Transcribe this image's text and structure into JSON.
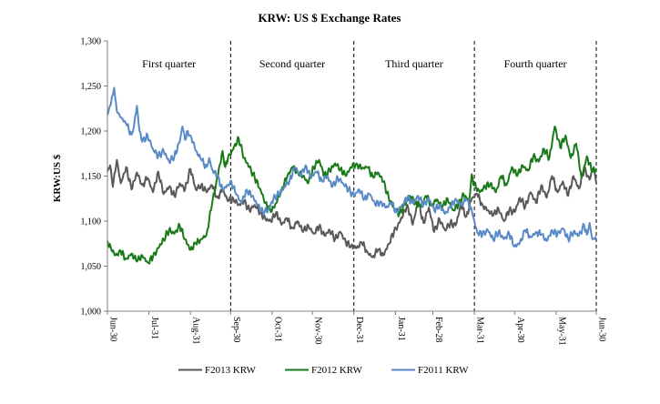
{
  "chart_data": {
    "type": "line",
    "title": "KRW: US $ Exchange Rates",
    "xlabel": "",
    "ylabel": "KRW:US $",
    "ylim": [
      1000,
      1300
    ],
    "y_ticks": [
      1000,
      1050,
      1100,
      1150,
      1200,
      1250,
      1300
    ],
    "y_tick_labels": [
      "1,000",
      "1,050",
      "1,100",
      "1,150",
      "1,200",
      "1,250",
      "1,300"
    ],
    "x_range_days": [
      0,
      365
    ],
    "x_ticks": [
      {
        "label": "Jun-30",
        "day": 0
      },
      {
        "label": "Jul-31",
        "day": 31
      },
      {
        "label": "Aug-31",
        "day": 62
      },
      {
        "label": "Sep-30",
        "day": 92
      },
      {
        "label": "Oct-31",
        "day": 123
      },
      {
        "label": "Nov-30",
        "day": 153
      },
      {
        "label": "Dec-31",
        "day": 184
      },
      {
        "label": "Jan-31",
        "day": 215
      },
      {
        "label": "Feb-28",
        "day": 243
      },
      {
        "label": "Mar-31",
        "day": 274
      },
      {
        "label": "Apr-30",
        "day": 304
      },
      {
        "label": "May-31",
        "day": 335
      },
      {
        "label": "Jun-30",
        "day": 365
      }
    ],
    "quarter_dividers_days": [
      92,
      184,
      274,
      365
    ],
    "quarters": [
      {
        "label": "First quarter",
        "start": 0,
        "end": 92
      },
      {
        "label": "Second quarter",
        "start": 92,
        "end": 184
      },
      {
        "label": "Third quarter",
        "start": 184,
        "end": 274
      },
      {
        "label": "Fourth quarter",
        "start": 274,
        "end": 365
      }
    ],
    "legend_position": "bottom",
    "grid": false,
    "series": [
      {
        "name": "F2013 KRW",
        "color": "#595959",
        "anchors": [
          [
            0,
            1155
          ],
          [
            2,
            1162
          ],
          [
            4,
            1138
          ],
          [
            7,
            1168
          ],
          [
            10,
            1142
          ],
          [
            14,
            1160
          ],
          [
            18,
            1135
          ],
          [
            22,
            1154
          ],
          [
            26,
            1140
          ],
          [
            30,
            1148
          ],
          [
            34,
            1132
          ],
          [
            38,
            1155
          ],
          [
            42,
            1130
          ],
          [
            46,
            1138
          ],
          [
            50,
            1128
          ],
          [
            54,
            1142
          ],
          [
            58,
            1135
          ],
          [
            62,
            1158
          ],
          [
            66,
            1135
          ],
          [
            70,
            1140
          ],
          [
            74,
            1132
          ],
          [
            78,
            1140
          ],
          [
            82,
            1126
          ],
          [
            86,
            1135
          ],
          [
            90,
            1122
          ],
          [
            94,
            1125
          ],
          [
            98,
            1118
          ],
          [
            102,
            1122
          ],
          [
            106,
            1112
          ],
          [
            110,
            1118
          ],
          [
            114,
            1110
          ],
          [
            118,
            1102
          ],
          [
            122,
            1100
          ],
          [
            126,
            1110
          ],
          [
            130,
            1096
          ],
          [
            134,
            1103
          ],
          [
            138,
            1092
          ],
          [
            142,
            1100
          ],
          [
            146,
            1088
          ],
          [
            150,
            1095
          ],
          [
            154,
            1086
          ],
          [
            158,
            1094
          ],
          [
            162,
            1084
          ],
          [
            166,
            1090
          ],
          [
            170,
            1080
          ],
          [
            174,
            1088
          ],
          [
            178,
            1076
          ],
          [
            182,
            1073
          ],
          [
            186,
            1070
          ],
          [
            190,
            1076
          ],
          [
            194,
            1066
          ],
          [
            198,
            1060
          ],
          [
            202,
            1068
          ],
          [
            206,
            1062
          ],
          [
            210,
            1075
          ],
          [
            214,
            1088
          ],
          [
            218,
            1098
          ],
          [
            222,
            1112
          ],
          [
            224,
            1118
          ],
          [
            228,
            1096
          ],
          [
            232,
            1122
          ],
          [
            236,
            1098
          ],
          [
            240,
            1115
          ],
          [
            244,
            1088
          ],
          [
            248,
            1102
          ],
          [
            252,
            1090
          ],
          [
            256,
            1098
          ],
          [
            260,
            1095
          ],
          [
            264,
            1118
          ],
          [
            268,
            1105
          ],
          [
            272,
            1125
          ],
          [
            276,
            1130
          ],
          [
            280,
            1118
          ],
          [
            284,
            1112
          ],
          [
            288,
            1106
          ],
          [
            292,
            1114
          ],
          [
            296,
            1100
          ],
          [
            300,
            1112
          ],
          [
            304,
            1110
          ],
          [
            308,
            1126
          ],
          [
            312,
            1116
          ],
          [
            316,
            1132
          ],
          [
            320,
            1120
          ],
          [
            324,
            1140
          ],
          [
            328,
            1126
          ],
          [
            332,
            1150
          ],
          [
            336,
            1132
          ],
          [
            340,
            1144
          ],
          [
            344,
            1128
          ],
          [
            348,
            1150
          ],
          [
            352,
            1136
          ],
          [
            356,
            1158
          ],
          [
            360,
            1146
          ],
          [
            363,
            1160
          ],
          [
            365,
            1142
          ]
        ]
      },
      {
        "name": "F2012 KRW",
        "color": "#1a7a1a",
        "anchors": [
          [
            0,
            1078
          ],
          [
            3,
            1068
          ],
          [
            6,
            1062
          ],
          [
            10,
            1066
          ],
          [
            14,
            1058
          ],
          [
            18,
            1064
          ],
          [
            22,
            1055
          ],
          [
            26,
            1062
          ],
          [
            30,
            1054
          ],
          [
            34,
            1060
          ],
          [
            38,
            1070
          ],
          [
            42,
            1080
          ],
          [
            46,
            1090
          ],
          [
            50,
            1086
          ],
          [
            54,
            1095
          ],
          [
            58,
            1080
          ],
          [
            62,
            1068
          ],
          [
            66,
            1075
          ],
          [
            70,
            1080
          ],
          [
            74,
            1085
          ],
          [
            78,
            1118
          ],
          [
            82,
            1148
          ],
          [
            86,
            1178
          ],
          [
            88,
            1160
          ],
          [
            90,
            1170
          ],
          [
            94,
            1180
          ],
          [
            98,
            1192
          ],
          [
            102,
            1170
          ],
          [
            106,
            1160
          ],
          [
            110,
            1148
          ],
          [
            114,
            1136
          ],
          [
            118,
            1120
          ],
          [
            122,
            1110
          ],
          [
            126,
            1120
          ],
          [
            130,
            1135
          ],
          [
            134,
            1148
          ],
          [
            138,
            1160
          ],
          [
            142,
            1155
          ],
          [
            146,
            1150
          ],
          [
            150,
            1142
          ],
          [
            154,
            1160
          ],
          [
            158,
            1168
          ],
          [
            162,
            1150
          ],
          [
            166,
            1156
          ],
          [
            170,
            1164
          ],
          [
            174,
            1158
          ],
          [
            178,
            1150
          ],
          [
            182,
            1160
          ],
          [
            186,
            1164
          ],
          [
            190,
            1158
          ],
          [
            194,
            1160
          ],
          [
            198,
            1150
          ],
          [
            202,
            1154
          ],
          [
            206,
            1144
          ],
          [
            210,
            1126
          ],
          [
            214,
            1114
          ],
          [
            218,
            1108
          ],
          [
            222,
            1118
          ],
          [
            226,
            1128
          ],
          [
            230,
            1120
          ],
          [
            234,
            1116
          ],
          [
            238,
            1128
          ],
          [
            242,
            1118
          ],
          [
            246,
            1124
          ],
          [
            250,
            1115
          ],
          [
            254,
            1125
          ],
          [
            258,
            1112
          ],
          [
            262,
            1118
          ],
          [
            266,
            1130
          ],
          [
            270,
            1122
          ],
          [
            272,
            1152
          ],
          [
            274,
            1140
          ],
          [
            278,
            1132
          ],
          [
            282,
            1138
          ],
          [
            286,
            1142
          ],
          [
            290,
            1132
          ],
          [
            294,
            1150
          ],
          [
            298,
            1140
          ],
          [
            302,
            1160
          ],
          [
            306,
            1150
          ],
          [
            310,
            1162
          ],
          [
            314,
            1156
          ],
          [
            318,
            1172
          ],
          [
            322,
            1166
          ],
          [
            326,
            1180
          ],
          [
            330,
            1170
          ],
          [
            334,
            1205
          ],
          [
            338,
            1182
          ],
          [
            342,
            1195
          ],
          [
            346,
            1170
          ],
          [
            350,
            1186
          ],
          [
            354,
            1148
          ],
          [
            358,
            1172
          ],
          [
            362,
            1155
          ],
          [
            365,
            1158
          ]
        ]
      },
      {
        "name": "F2011 KRW",
        "color": "#5a8ac6",
        "anchors": [
          [
            0,
            1218
          ],
          [
            2,
            1228
          ],
          [
            4,
            1240
          ],
          [
            5,
            1248
          ],
          [
            7,
            1222
          ],
          [
            10,
            1215
          ],
          [
            14,
            1208
          ],
          [
            18,
            1196
          ],
          [
            20,
            1208
          ],
          [
            22,
            1228
          ],
          [
            24,
            1200
          ],
          [
            26,
            1188
          ],
          [
            30,
            1195
          ],
          [
            34,
            1180
          ],
          [
            38,
            1172
          ],
          [
            42,
            1178
          ],
          [
            46,
            1166
          ],
          [
            50,
            1172
          ],
          [
            54,
            1188
          ],
          [
            56,
            1205
          ],
          [
            58,
            1190
          ],
          [
            60,
            1200
          ],
          [
            62,
            1195
          ],
          [
            64,
            1188
          ],
          [
            66,
            1178
          ],
          [
            70,
            1168
          ],
          [
            74,
            1160
          ],
          [
            76,
            1170
          ],
          [
            78,
            1158
          ],
          [
            82,
            1150
          ],
          [
            86,
            1135
          ],
          [
            90,
            1140
          ],
          [
            92,
            1145
          ],
          [
            96,
            1130
          ],
          [
            100,
            1120
          ],
          [
            104,
            1135
          ],
          [
            108,
            1128
          ],
          [
            112,
            1118
          ],
          [
            116,
            1110
          ],
          [
            120,
            1112
          ],
          [
            124,
            1125
          ],
          [
            128,
            1130
          ],
          [
            132,
            1138
          ],
          [
            136,
            1145
          ],
          [
            140,
            1160
          ],
          [
            144,
            1150
          ],
          [
            148,
            1162
          ],
          [
            152,
            1148
          ],
          [
            156,
            1155
          ],
          [
            160,
            1145
          ],
          [
            164,
            1150
          ],
          [
            168,
            1138
          ],
          [
            172,
            1148
          ],
          [
            176,
            1142
          ],
          [
            180,
            1135
          ],
          [
            184,
            1128
          ],
          [
            188,
            1135
          ],
          [
            192,
            1125
          ],
          [
            196,
            1130
          ],
          [
            200,
            1118
          ],
          [
            204,
            1122
          ],
          [
            208,
            1115
          ],
          [
            212,
            1120
          ],
          [
            216,
            1110
          ],
          [
            220,
            1118
          ],
          [
            224,
            1126
          ],
          [
            228,
            1120
          ],
          [
            232,
            1128
          ],
          [
            236,
            1118
          ],
          [
            240,
            1125
          ],
          [
            244,
            1112
          ],
          [
            248,
            1118
          ],
          [
            252,
            1108
          ],
          [
            256,
            1115
          ],
          [
            260,
            1125
          ],
          [
            264,
            1118
          ],
          [
            268,
            1124
          ],
          [
            272,
            1112
          ],
          [
            274,
            1100
          ],
          [
            276,
            1088
          ],
          [
            280,
            1085
          ],
          [
            284,
            1090
          ],
          [
            288,
            1080
          ],
          [
            292,
            1088
          ],
          [
            296,
            1080
          ],
          [
            300,
            1086
          ],
          [
            304,
            1072
          ],
          [
            308,
            1076
          ],
          [
            312,
            1090
          ],
          [
            316,
            1082
          ],
          [
            320,
            1088
          ],
          [
            324,
            1085
          ],
          [
            328,
            1078
          ],
          [
            332,
            1090
          ],
          [
            336,
            1085
          ],
          [
            340,
            1092
          ],
          [
            344,
            1080
          ],
          [
            348,
            1088
          ],
          [
            352,
            1084
          ],
          [
            356,
            1095
          ],
          [
            358,
            1085
          ],
          [
            360,
            1098
          ],
          [
            362,
            1080
          ],
          [
            365,
            1082
          ]
        ]
      }
    ]
  }
}
